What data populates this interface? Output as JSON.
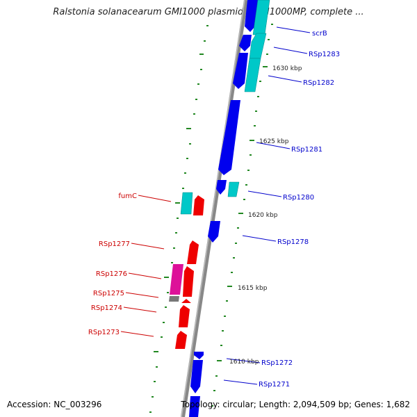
{
  "title": "Ralstonia solanacearum GMI1000 plasmid pGMI1000MP, complete ...",
  "accession": "Accession: NC_003296",
  "summary": "Topology: circular; Length: 2,094,509 bp; Genes: 1,682",
  "ticks": [
    "1630 kbp",
    "1625 kbp",
    "1620 kbp",
    "1615 kbp",
    "1610 kbp"
  ],
  "genes_right": [
    "scrB",
    "RSp1283",
    "RSp1282",
    "RSp1281",
    "RSp1280",
    "RSp1278",
    "RSp1272",
    "RSp1271"
  ],
  "genes_left": [
    "fumC",
    "RSp1277",
    "RSp1276",
    "RSp1275",
    "RSp1274",
    "RSp1273"
  ],
  "colors": {
    "forward_cds": "#0000ee",
    "reverse_cds": "#ee0000",
    "rna_cyan": "#00c8c8",
    "magenta": "#dd1199",
    "backbone": "#888888",
    "tick": "#228822",
    "label_right": "#0000cc",
    "label_left": "#cc0000"
  }
}
